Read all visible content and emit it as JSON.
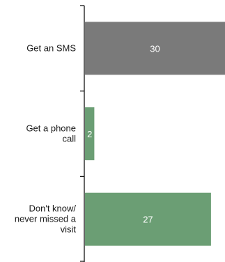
{
  "chart_data": {
    "type": "bar",
    "orientation": "horizontal",
    "categories": [
      [
        "Get an SMS"
      ],
      [
        "Get a phone",
        "call"
      ],
      [
        "Don't know/",
        "never missed a",
        "visit"
      ]
    ],
    "values": [
      30,
      2,
      27
    ],
    "value_labels": [
      "30",
      "2",
      "27"
    ],
    "colors": [
      "#7a7a7a",
      "#6b9e74",
      "#6b9e74"
    ],
    "xlim": [
      0,
      30
    ],
    "grid": false,
    "legend": "none",
    "title": "",
    "xlabel": "",
    "ylabel": ""
  }
}
